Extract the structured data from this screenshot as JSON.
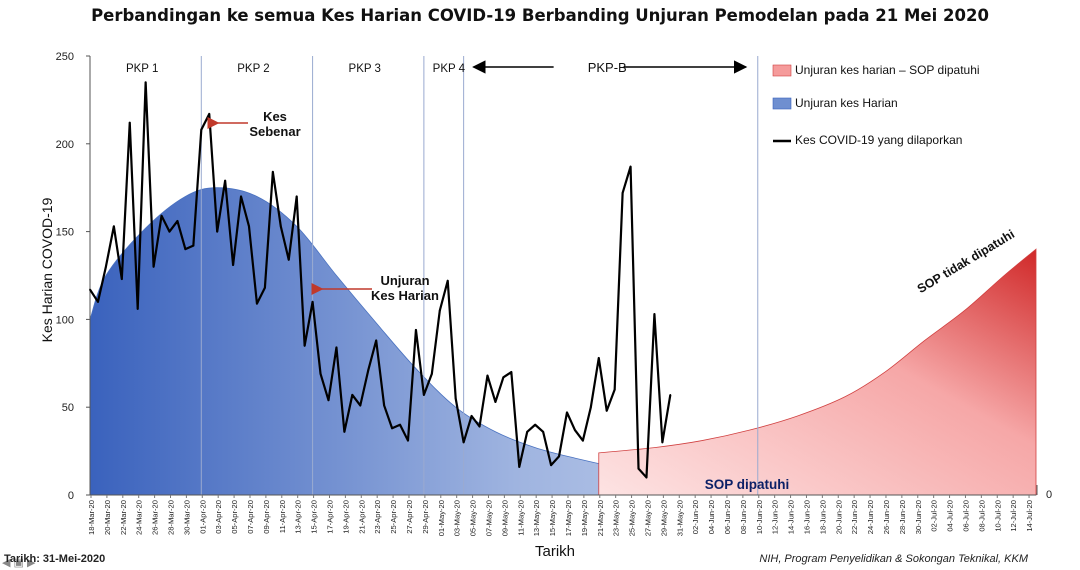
{
  "title": "Perbandingan ke semua Kes Harian COVID-19 Berbanding Unjuran Pemodelan pada 21 Mei 2020",
  "footer": {
    "date_label": "Tarikh: 31-Mei-2020",
    "source": "NIH, Program Penyelidikan & Sokongan Teknikal, KKM"
  },
  "chart_data": {
    "type": "area",
    "title": "Perbandingan ke semua Kes Harian COVID-19 Berbanding Unjuran Pemodelan pada 21 Mei 2020",
    "xlabel": "Tarikh",
    "ylabel": "Kes Harian COVOD-19",
    "ylim": [
      0,
      250
    ],
    "yticks": [
      0,
      50,
      100,
      150,
      200,
      250
    ],
    "secondary_axis_label": "0",
    "grid": false,
    "legend_position": "top-right",
    "x_start": "2020-03-18",
    "x_end": "2020-07-15",
    "xticks": [
      "18-Mar-20",
      "20-Mar-20",
      "22-Mar-20",
      "24-Mar-20",
      "26-Mar-20",
      "28-Mar-20",
      "30-Mar-20",
      "01-Apr-20",
      "03-Apr-20",
      "05-Apr-20",
      "07-Apr-20",
      "09-Apr-20",
      "11-Apr-20",
      "13-Apr-20",
      "15-Apr-20",
      "17-Apr-20",
      "19-Apr-20",
      "21-Apr-20",
      "23-Apr-20",
      "25-Apr-20",
      "27-Apr-20",
      "29-Apr-20",
      "01-May-20",
      "03-May-20",
      "05-May-20",
      "07-May-20",
      "09-May-20",
      "11-May-20",
      "13-May-20",
      "15-May-20",
      "17-May-20",
      "19-May-20",
      "21-May-20",
      "23-May-20",
      "25-May-20",
      "27-May-20",
      "29-May-20",
      "31-May-20",
      "02-Jun-20",
      "04-Jun-20",
      "06-Jun-20",
      "08-Jun-20",
      "10-Jun-20",
      "12-Jun-20",
      "14-Jun-20",
      "16-Jun-20",
      "18-Jun-20",
      "20-Jun-20",
      "22-Jun-20",
      "24-Jun-20",
      "26-Jun-20",
      "28-Jun-20",
      "30-Jun-20",
      "02-Jul-20",
      "04-Jul-20",
      "06-Jul-20",
      "08-Jul-20",
      "10-Jul-20",
      "12-Jul-20",
      "14-Jul-20"
    ],
    "phases": [
      {
        "label": "PKP 1",
        "start": "2020-03-18",
        "end": "2020-03-31"
      },
      {
        "label": "PKP 2",
        "start": "2020-04-01",
        "end": "2020-04-14"
      },
      {
        "label": "PKP 3",
        "start": "2020-04-15",
        "end": "2020-04-28"
      },
      {
        "label": "PKP 4",
        "start": "2020-04-29",
        "end": "2020-05-03"
      },
      {
        "label": "PKP-B",
        "start": "2020-05-04",
        "end": "2020-06-09"
      }
    ],
    "legend": [
      {
        "label": "Unjuran kes harian – SOP dipatuhi",
        "color": "#f08080"
      },
      {
        "label": "Unjuran kes Harian",
        "color": "#4a72c0"
      },
      {
        "label": "Kes COVID-19 yang dilaporkan",
        "color": "#000000"
      }
    ],
    "annotations": {
      "kes_sebenar": "Kes\nSebenar",
      "unjuran_kes_harian": "Unjuran\nKes Harian",
      "sop_dipatuhi": "SOP dipatuhi",
      "sop_tidak_dipatuhi": "SOP tidak dipatuhi"
    },
    "series": [
      {
        "name": "Kes COVID-19 yang dilaporkan",
        "type": "line",
        "color": "#000000",
        "x_start": "2020-03-18",
        "values": [
          117,
          110,
          130,
          153,
          123,
          212,
          106,
          235,
          130,
          159,
          150,
          156,
          140,
          142,
          208,
          217,
          150,
          179,
          131,
          170,
          153,
          109,
          118,
          184,
          153,
          134,
          170,
          85,
          110,
          69,
          54,
          84,
          36,
          57,
          51,
          71,
          88,
          51,
          38,
          40,
          31,
          94,
          57,
          69,
          105,
          122,
          55,
          30,
          45,
          39,
          68,
          53,
          67,
          70,
          16,
          36,
          40,
          36,
          17,
          22,
          47,
          37,
          31,
          50,
          78,
          48,
          60,
          172,
          187,
          15,
          10,
          103,
          30,
          57
        ]
      },
      {
        "name": "Unjuran kes Harian",
        "type": "area",
        "color": "#4a72c0",
        "points": [
          [
            "2020-03-18",
            100
          ],
          [
            "2020-03-20",
            125
          ],
          [
            "2020-03-25",
            152
          ],
          [
            "2020-03-30",
            170
          ],
          [
            "2020-04-03",
            175
          ],
          [
            "2020-04-08",
            170
          ],
          [
            "2020-04-13",
            153
          ],
          [
            "2020-04-18",
            125
          ],
          [
            "2020-04-23",
            98
          ],
          [
            "2020-04-28",
            72
          ],
          [
            "2020-05-03",
            50
          ],
          [
            "2020-05-08",
            36
          ],
          [
            "2020-05-13",
            27
          ],
          [
            "2020-05-18",
            21
          ],
          [
            "2020-05-23",
            16
          ],
          [
            "2020-05-28",
            12
          ],
          [
            "2020-06-02",
            10
          ],
          [
            "2020-06-08",
            8
          ],
          [
            "2020-06-15",
            6
          ],
          [
            "2020-06-25",
            4
          ],
          [
            "2020-07-05",
            3
          ],
          [
            "2020-07-15",
            1
          ]
        ]
      },
      {
        "name": "Unjuran kes harian – SOP dipatuhi",
        "type": "area",
        "color": "#f08080",
        "points": [
          [
            "2020-05-21",
            24
          ],
          [
            "2020-05-28",
            27
          ],
          [
            "2020-06-03",
            31
          ],
          [
            "2020-06-09",
            37
          ],
          [
            "2020-06-15",
            45
          ],
          [
            "2020-06-21",
            56
          ],
          [
            "2020-06-26",
            70
          ],
          [
            "2020-07-01",
            88
          ],
          [
            "2020-07-06",
            105
          ],
          [
            "2020-07-11",
            125
          ],
          [
            "2020-07-15",
            140
          ]
        ]
      }
    ]
  }
}
